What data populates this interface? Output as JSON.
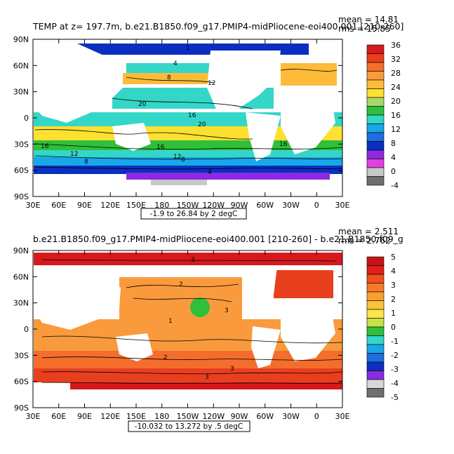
{
  "chart_data": [
    {
      "type": "heatmap",
      "title": "TEMP at z= 197.7m, b.e21.B1850.f09_g17.PMIP4-midPliocene-eoi400.001 [210-260]",
      "mean_label": "mean = 14.81",
      "rms_label": "rms = 15.85",
      "range_label": "-1.9 to 26.84 by 2 degC",
      "x_ticks": [
        "30E",
        "60E",
        "90E",
        "120E",
        "150E",
        "180",
        "150W",
        "120W",
        "90W",
        "60W",
        "30W",
        "0",
        "30E"
      ],
      "y_ticks": [
        "90N",
        "60N",
        "30N",
        "0",
        "30S",
        "60S",
        "90S"
      ],
      "colorbar": {
        "levels": [
          "36",
          "32",
          "28",
          "24",
          "20",
          "16",
          "12",
          "8",
          "4",
          "0",
          "-4"
        ],
        "colors": [
          "#d7191c",
          "#e83f1f",
          "#f46d2c",
          "#f99a3c",
          "#fdbb3a",
          "#fee030",
          "#a6d96a",
          "#2fbf3a",
          "#34d6c7",
          "#18a7e8",
          "#1c6fe0",
          "#0b2fc0",
          "#8a2be2",
          "#e040e0",
          "#c8c8c8",
          "#6e6e6e"
        ]
      },
      "contour_labels": [
        "1",
        "4",
        "8",
        "12",
        "16",
        "20",
        "16",
        "20",
        "12",
        "16",
        "8",
        "4",
        "12",
        "16",
        "8"
      ]
    },
    {
      "type": "heatmap",
      "title": "b.e21.B1850.f09_g17.PMIP4-midPliocene-eoi400.001 [210-260] - b.e21.B1850.f09_g",
      "mean_label": "mean = 2.511",
      "rms_label": "rms = 2.762",
      "range_label": "-10.032 to 13.272 by .5 degC",
      "x_ticks": [
        "30E",
        "60E",
        "90E",
        "120E",
        "150E",
        "180",
        "150W",
        "120W",
        "90W",
        "60W",
        "30W",
        "0",
        "30E"
      ],
      "y_ticks": [
        "90N",
        "60N",
        "30N",
        "0",
        "30S",
        "60S",
        "90S"
      ],
      "colorbar": {
        "levels": [
          "5",
          "4",
          "3",
          "2",
          "1",
          "0",
          "-1",
          "-2",
          "-3",
          "-4",
          "-5"
        ],
        "colors": [
          "#c81414",
          "#e0201a",
          "#f05020",
          "#f47b2a",
          "#f8a032",
          "#fcc23a",
          "#fde54a",
          "#c8e04a",
          "#2fbf3a",
          "#34d6c7",
          "#18a7e8",
          "#1c6fe0",
          "#0b2fc0",
          "#8a2be2",
          "#d8d8d8",
          "#6e6e6e"
        ]
      },
      "contour_labels": [
        "3",
        "2",
        "1",
        "2",
        "3",
        "3",
        "3"
      ]
    }
  ]
}
